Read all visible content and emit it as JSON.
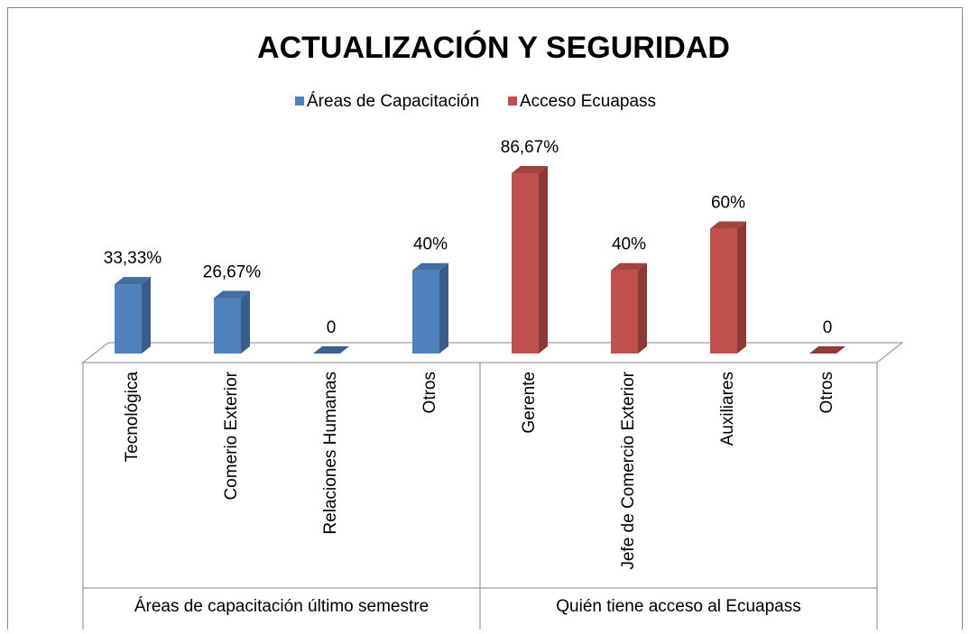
{
  "chart_data": {
    "type": "bar3d",
    "title": "ACTUALIZACIÓN Y SEGURIDAD",
    "categories": [
      "Tecnológica",
      "Comerio Exterior",
      "Relaciones Humanas",
      "Otros",
      "Gerente",
      "Jefe de Comercio Exterior",
      "Auxiliares",
      "Otros"
    ],
    "groups": [
      "Áreas de capacitación último semestre",
      "Quién tiene acceso al Ecuapass"
    ],
    "series": [
      {
        "name": "Áreas de Capacitación",
        "color": "#4f81bd",
        "values": [
          33.33,
          26.67,
          0,
          40,
          null,
          null,
          null,
          null
        ],
        "value_labels": [
          "33,33%",
          "26,67%",
          "0",
          "40%",
          null,
          null,
          null,
          null
        ]
      },
      {
        "name": "Acceso Ecuapass",
        "color": "#c0504d",
        "values": [
          null,
          null,
          null,
          null,
          86.67,
          40,
          60,
          0
        ],
        "value_labels": [
          null,
          null,
          null,
          null,
          "86,67%",
          "40%",
          "60%",
          "0"
        ]
      }
    ],
    "legend": "top"
  }
}
